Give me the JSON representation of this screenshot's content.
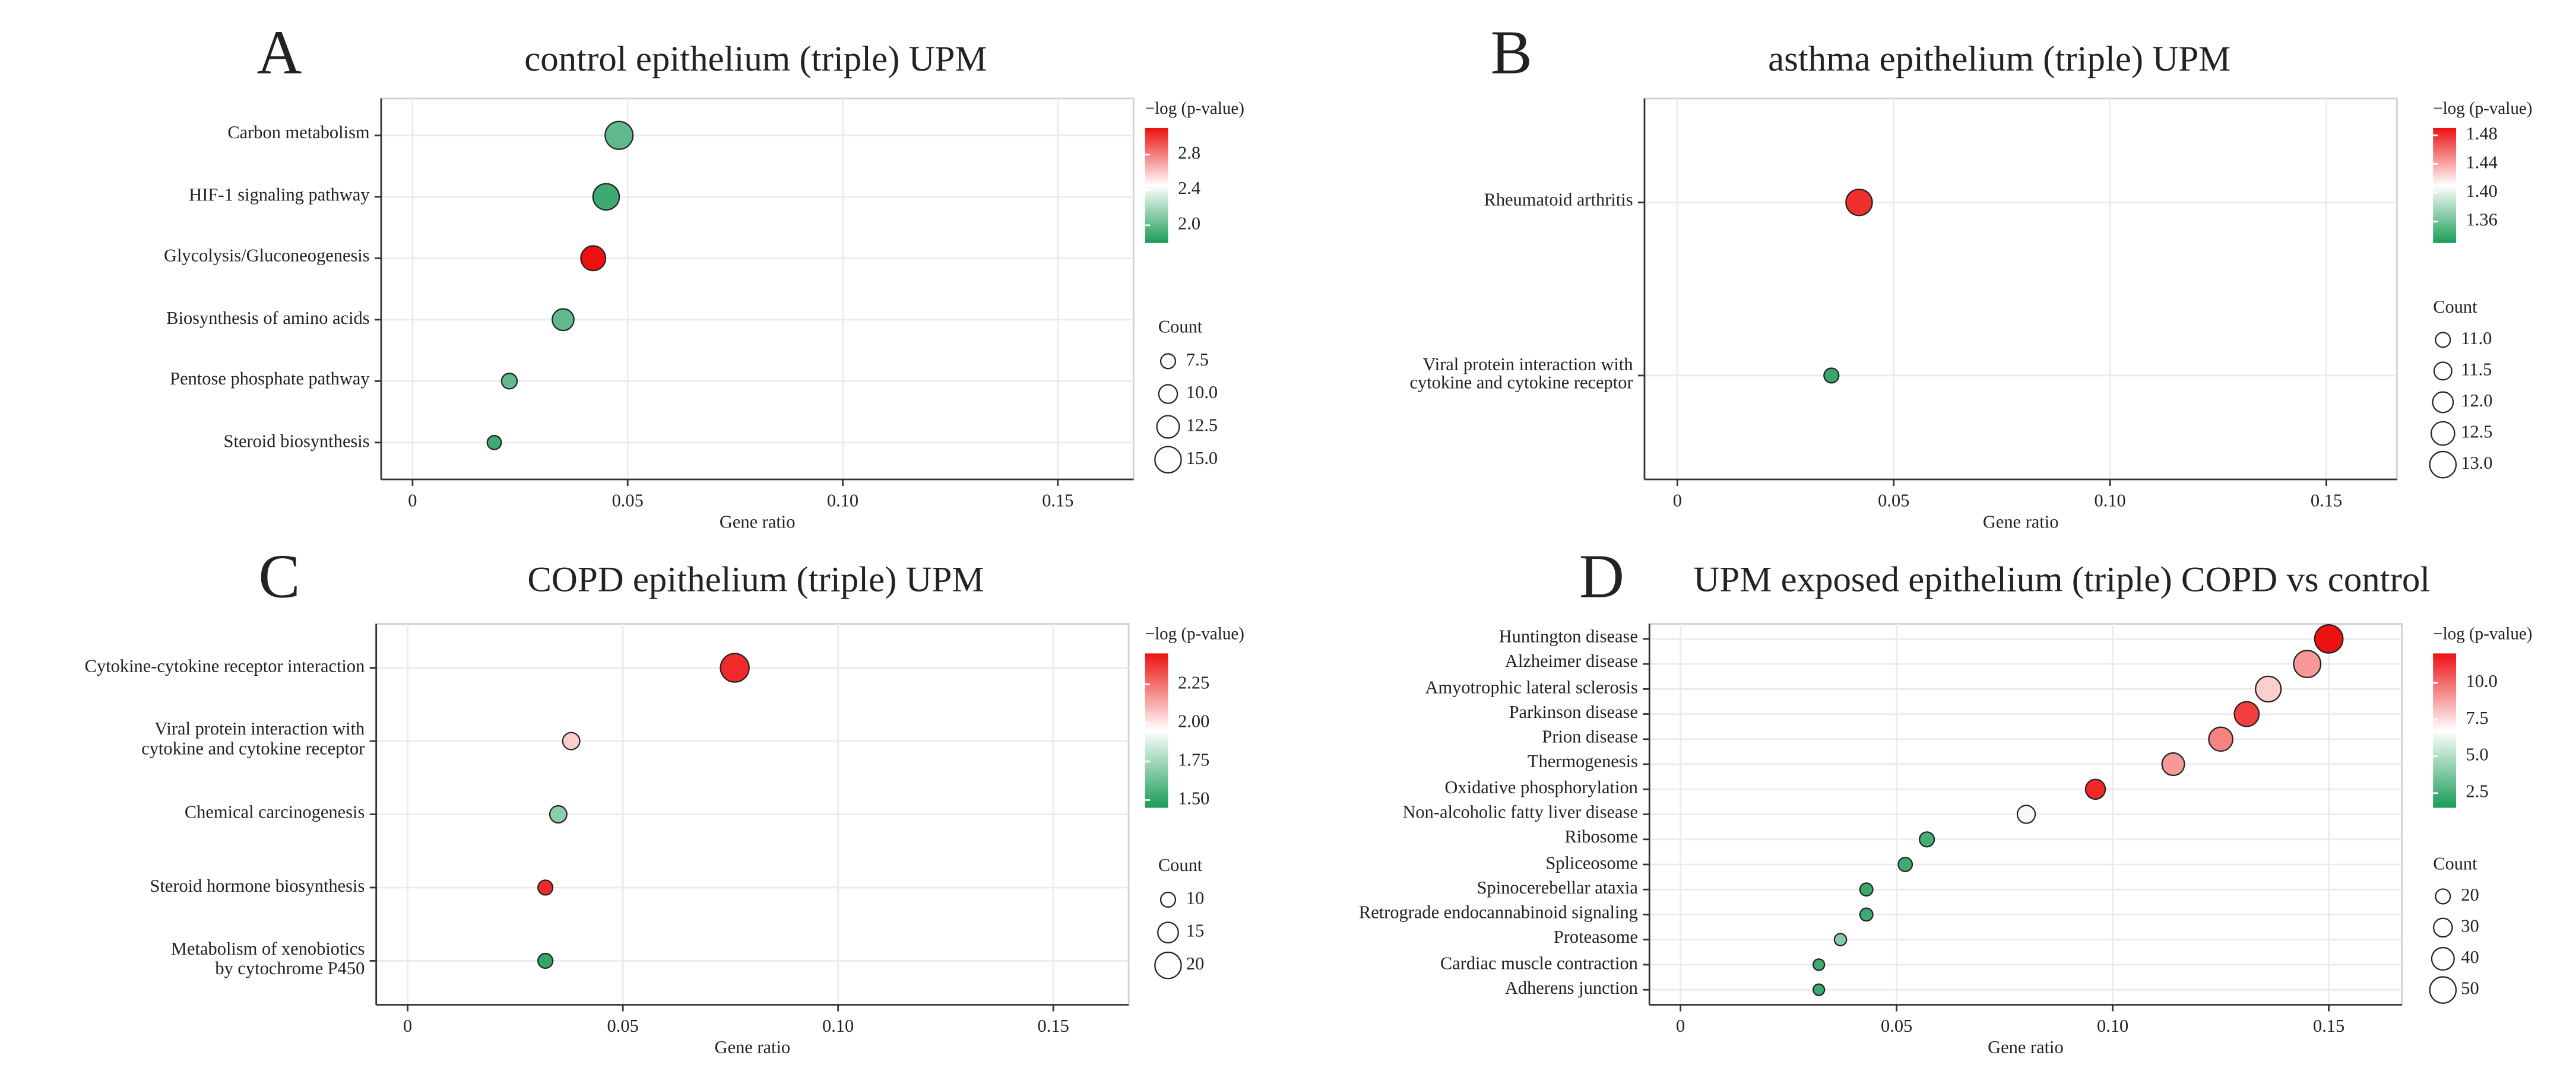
{
  "chart_data": [
    {
      "type": "bubble",
      "panel": "A",
      "title": "control epithelium (triple) UPM",
      "x_label": "Gene ratio",
      "categories": [
        "Carbon metabolism",
        "HIF-1 signaling pathway",
        "Glycolysis/Gluconeogenesis",
        "Biosynthesis of amino acids",
        "Pentose phosphate pathway",
        "Steroid biosynthesis"
      ],
      "values": [
        0.048,
        0.045,
        0.042,
        0.035,
        0.0225,
        0.019
      ],
      "neg_log_p": [
        2.0,
        1.9,
        3.1,
        2.0,
        2.0,
        1.9
      ],
      "counts": [
        16,
        15,
        14,
        12,
        8,
        7
      ],
      "xlim": [
        -0.0073,
        0.1676
      ],
      "xticks": [
        0,
        0.05,
        {
          "value": 0.1,
          "label": "0.10"
        },
        0.15
      ],
      "grid": true,
      "color_title": "−log (p-value)",
      "color_lim": [
        1.8,
        3.1
      ],
      "color_ticks": [
        {
          "value": 2,
          "label": "2.0"
        },
        2.4,
        2.8
      ],
      "colors": [
        "#1a9c57",
        "#ffffff",
        "#ee1111"
      ],
      "size_title": "Count",
      "size_ticks": [
        7.5,
        {
          "value": 10,
          "label": "10.0"
        },
        12.5,
        {
          "value": 15,
          "label": "15.0"
        }
      ]
    },
    {
      "type": "bubble",
      "panel": "B",
      "title": "asthma epithelium (triple) UPM",
      "x_label": "Gene ratio",
      "categories": [
        "Rheumatoid arthritis",
        "Viral protein interaction with\ncytokine and cytokine receptor"
      ],
      "values": [
        0.042,
        0.0356
      ],
      "neg_log_p": [
        1.48,
        1.34
      ],
      "counts": [
        13,
        11
      ],
      "xlim": [
        -0.0076,
        0.1663
      ],
      "xticks": [
        0,
        0.05,
        {
          "value": 0.1,
          "label": "0.10"
        },
        0.15
      ],
      "grid": true,
      "color_title": "−log (p-value)",
      "color_lim": [
        1.33,
        1.49
      ],
      "color_ticks": [
        1.36,
        {
          "value": 1.4,
          "label": "1.40"
        },
        1.44,
        1.48
      ],
      "colors": [
        "#1a9c57",
        "#ffffff",
        "#ee1111"
      ],
      "size_title": "Count",
      "size_ticks": [
        {
          "value": 11,
          "label": "11.0"
        },
        11.5,
        {
          "value": 12,
          "label": "12.0"
        },
        12.5,
        {
          "value": 13,
          "label": "13.0"
        }
      ]
    },
    {
      "type": "bubble",
      "panel": "C",
      "title": "COPD epithelium (triple) UPM",
      "x_label": "Gene ratio",
      "categories": [
        "Cytokine-cytokine receptor interaction",
        "Viral protein interaction with\ncytokine and cytokine receptor",
        "Chemical carcinogenesis",
        "Steroid hormone biosynthesis",
        "Metabolism of xenobiotics\nby cytochrome P450"
      ],
      "values": [
        0.076,
        0.038,
        0.035,
        0.032,
        0.032
      ],
      "neg_log_p": [
        2.4,
        2.05,
        1.7,
        2.4,
        1.5
      ],
      "counts": [
        22,
        12,
        12,
        10,
        10
      ],
      "xlim": [
        -0.0073,
        0.1675
      ],
      "xticks": [
        0,
        0.05,
        {
          "value": 0.1,
          "label": "0.10"
        },
        0.15
      ],
      "grid": true,
      "color_title": "−log (p-value)",
      "color_lim": [
        1.45,
        2.45
      ],
      "color_ticks": [
        {
          "value": 1.5,
          "label": "1.50"
        },
        1.75,
        {
          "value": 2,
          "label": "2.00"
        },
        2.25
      ],
      "colors": [
        "#1a9c57",
        "#ffffff",
        "#ee1111"
      ],
      "size_title": "Count",
      "size_ticks": [
        10,
        15,
        20
      ]
    },
    {
      "type": "bubble",
      "panel": "D",
      "title": "UPM exposed epithelium (triple) COPD vs control",
      "x_label": "Gene ratio",
      "categories": [
        "Huntington disease",
        "Alzheimer disease",
        "Amyotrophic lateral sclerosis",
        "Parkinson disease",
        "Prion disease",
        "Thermogenesis",
        "Oxidative phosphorylation",
        "Non-alcoholic fatty liver disease",
        "Ribosome",
        "Spliceosome",
        "Spinocerebellar ataxia",
        "Retrograde endocannabinoid signaling",
        "Proteasome",
        "Cardiac muscle contraction",
        "Adherens junction"
      ],
      "values": [
        0.15,
        0.145,
        0.136,
        0.131,
        0.125,
        0.114,
        0.096,
        0.08,
        0.057,
        0.052,
        0.043,
        0.043,
        0.037,
        0.032,
        0.032
      ],
      "neg_log_p": [
        12,
        9,
        7.8,
        11,
        9.5,
        9,
        11.5,
        6.5,
        2.5,
        2.3,
        2.2,
        2.3,
        4,
        2.3,
        2.2
      ],
      "counts": [
        55,
        52,
        48,
        46,
        44,
        40,
        33,
        28,
        20,
        18,
        15,
        15,
        13,
        11,
        11
      ],
      "xlim": [
        -0.0072,
        0.1669
      ],
      "xticks": [
        0,
        0.05,
        {
          "value": 0.1,
          "label": "0.10"
        },
        0.15
      ],
      "grid": true,
      "color_title": "−log (p-value)",
      "color_lim": [
        1.5,
        12
      ],
      "color_ticks": [
        2.5,
        {
          "value": 5,
          "label": "5.0"
        },
        7.5,
        {
          "value": 10,
          "label": "10.0"
        }
      ],
      "colors": [
        "#1a9c57",
        "#ffffff",
        "#ee1111"
      ],
      "size_title": "Count",
      "size_ticks": [
        20,
        30,
        40,
        50
      ]
    }
  ]
}
